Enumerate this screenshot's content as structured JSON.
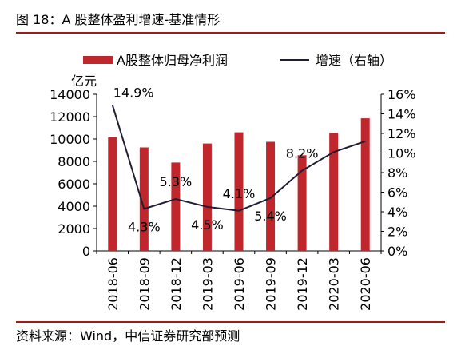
{
  "header": {
    "title": "图 18：A 股整体盈利增速-基准情形"
  },
  "footer": {
    "source": "资料来源：Wind，中信证券研究部预测"
  },
  "colors": {
    "bar": "#c0272d",
    "line": "#1f1f33",
    "rule": "#9e1b1b"
  },
  "chart_data": {
    "type": "bar",
    "title": "图 18：A 股整体盈利增速-基准情形",
    "categories": [
      "2018-06",
      "2018-09",
      "2018-12",
      "2019-03",
      "2019-06",
      "2019-09",
      "2019-12",
      "2020-03",
      "2020-06"
    ],
    "series": [
      {
        "name": "A股整体归母净利润",
        "type": "bar",
        "axis": "left",
        "values": [
          10150,
          9250,
          7900,
          9600,
          10600,
          9750,
          8550,
          10550,
          11850
        ]
      },
      {
        "name": "增速（右轴）",
        "type": "line",
        "axis": "right",
        "values": [
          14.9,
          4.3,
          5.3,
          4.5,
          4.1,
          5.4,
          8.2,
          10.1,
          11.2
        ]
      }
    ],
    "y_left": {
      "unit_label": "亿元",
      "ylim": [
        0,
        14000
      ],
      "ticks": [
        "0",
        "2000",
        "4000",
        "6000",
        "8000",
        "10000",
        "12000",
        "14000"
      ]
    },
    "y_right": {
      "ylim": [
        0,
        16
      ],
      "ticks": [
        "0%",
        "2%",
        "4%",
        "6%",
        "8%",
        "10%",
        "12%",
        "14%",
        "16%"
      ]
    },
    "point_labels": [
      "14.9%",
      "4.3%",
      "5.3%",
      "4.5%",
      "4.1%",
      "5.4%",
      "8.2%",
      "",
      ""
    ],
    "legend": {
      "position": "top",
      "items": [
        "A股整体归母净利润",
        "增速（右轴）"
      ]
    },
    "grid": false
  }
}
